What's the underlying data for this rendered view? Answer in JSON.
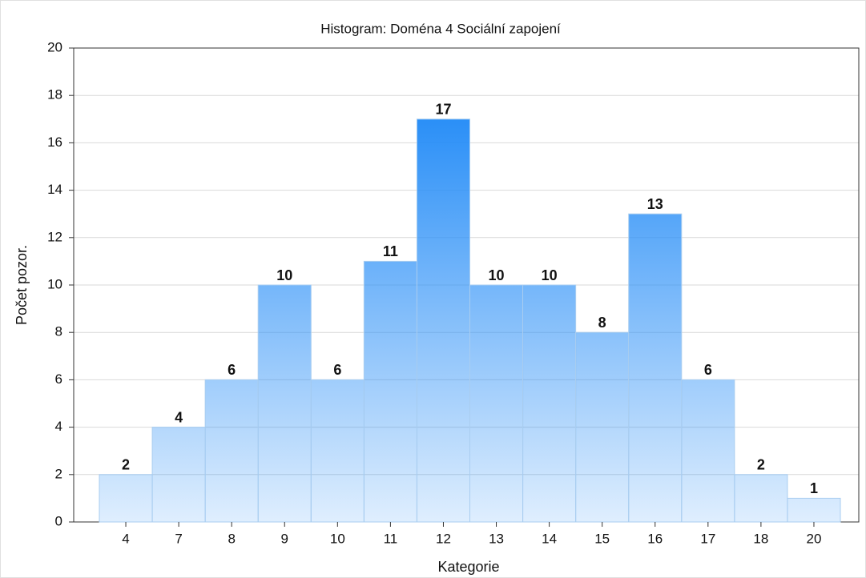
{
  "chart_data": {
    "type": "bar",
    "title": "Histogram: Doména 4 Sociální zapojení",
    "x_label": "Kategorie",
    "y_label": "Počet pozor.",
    "categories": [
      "4",
      "7",
      "8",
      "9",
      "10",
      "11",
      "12",
      "13",
      "14",
      "15",
      "16",
      "17",
      "18",
      "20"
    ],
    "values": [
      2,
      4,
      6,
      10,
      6,
      11,
      17,
      10,
      10,
      8,
      13,
      6,
      2,
      1
    ],
    "color": "#2a8ff7",
    "ylim": [
      0,
      20
    ],
    "yticks": [
      0,
      2,
      4,
      6,
      8,
      10,
      12,
      14,
      16,
      18,
      20
    ],
    "grid": true
  }
}
